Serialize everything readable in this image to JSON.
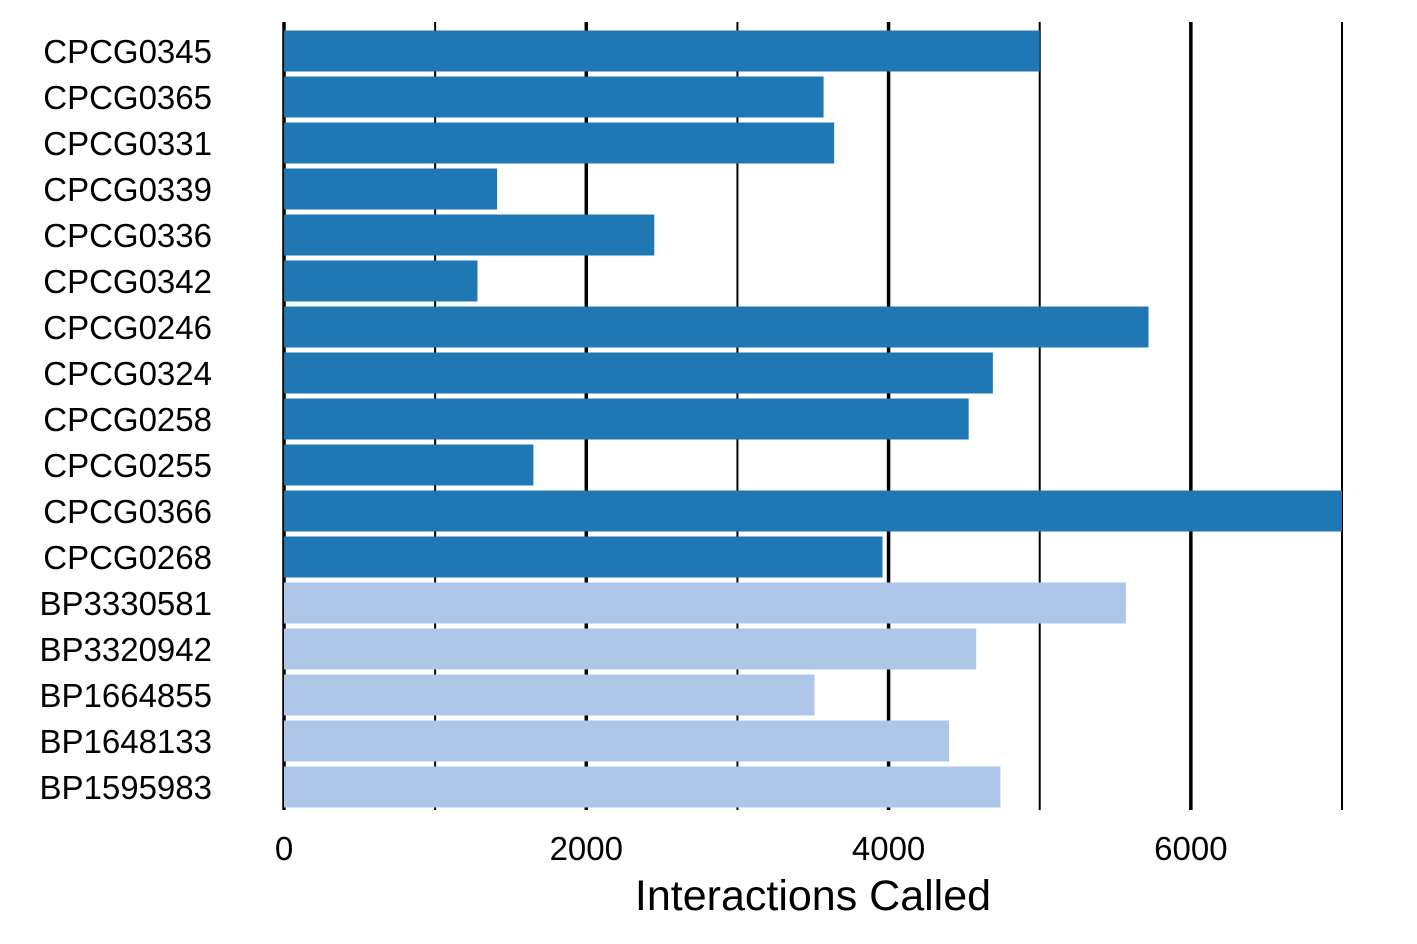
{
  "chart_data": {
    "type": "bar",
    "orientation": "horizontal",
    "title": "",
    "xlabel": "Interactions Called",
    "ylabel": "",
    "xlim": [
      0,
      7000
    ],
    "major_ticks": [
      0,
      2000,
      4000,
      6000
    ],
    "minor_ticks": [
      1000,
      3000,
      5000,
      7000
    ],
    "grid": "vertical",
    "legend": "none",
    "categories": [
      "CPCG0345",
      "CPCG0365",
      "CPCG0331",
      "CPCG0339",
      "CPCG0336",
      "CPCG0342",
      "CPCG0246",
      "CPCG0324",
      "CPCG0258",
      "CPCG0255",
      "CPCG0366",
      "CPCG0268",
      "BP3330581",
      "BP3320942",
      "BP1664855",
      "BP1648133",
      "BP1595983"
    ],
    "values": [
      5000,
      3570,
      3640,
      1410,
      2450,
      1280,
      5720,
      4690,
      4530,
      1650,
      7000,
      3960,
      5570,
      4580,
      3510,
      4400,
      4740
    ],
    "bar_colors": [
      "#1f77b4",
      "#1f77b4",
      "#1f77b4",
      "#1f77b4",
      "#1f77b4",
      "#1f77b4",
      "#1f77b4",
      "#1f77b4",
      "#1f77b4",
      "#1f77b4",
      "#1f77b4",
      "#1f77b4",
      "#aec7e8",
      "#aec7e8",
      "#aec7e8",
      "#aec7e8",
      "#aec7e8"
    ],
    "gridline_color": "#000000"
  }
}
